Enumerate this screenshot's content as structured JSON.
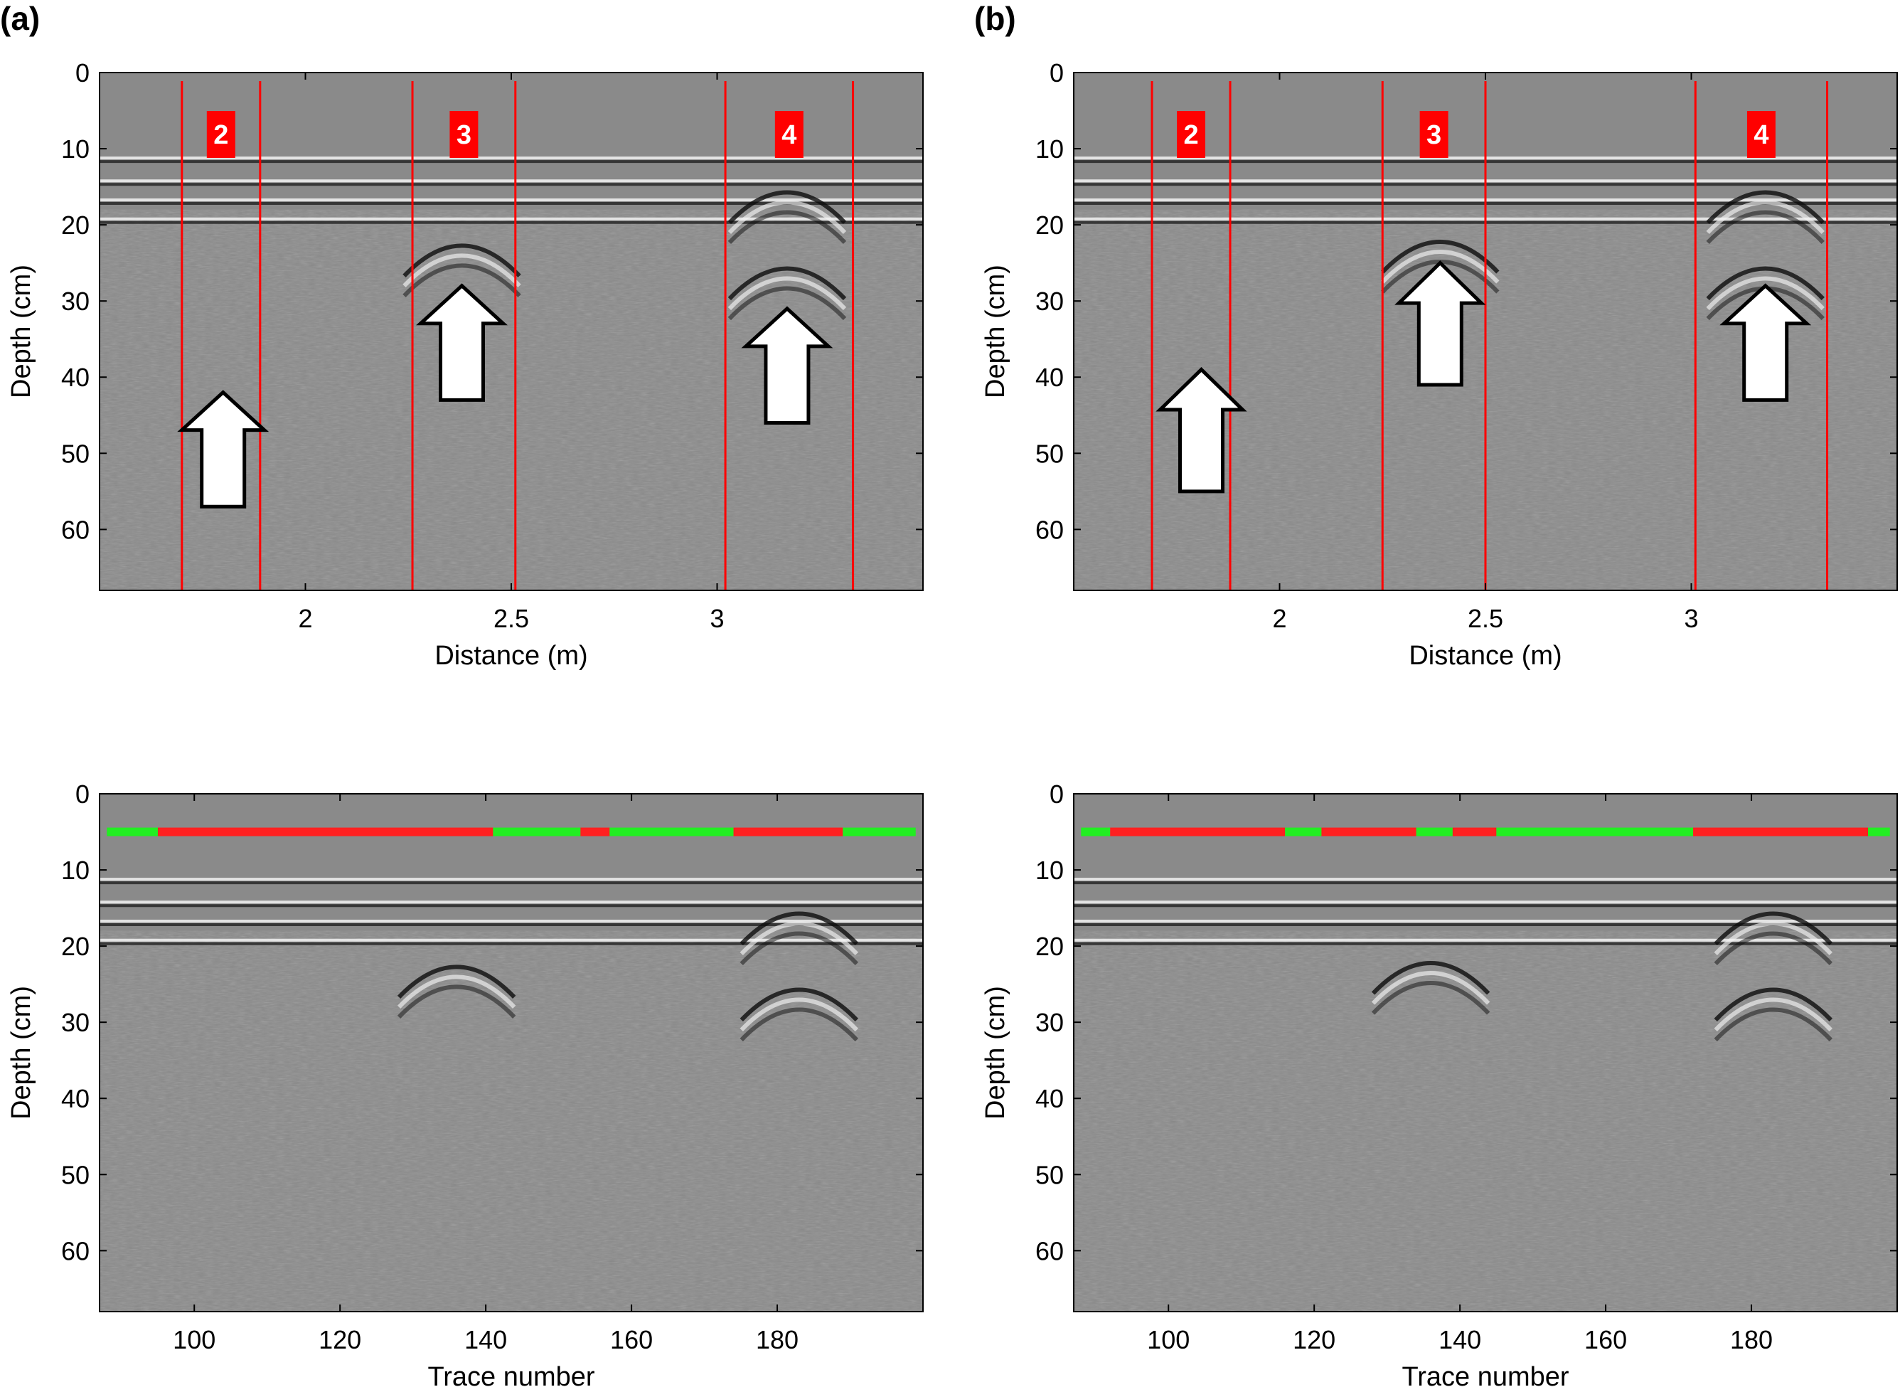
{
  "figure": {
    "panels": [
      {
        "id": "a",
        "label": "(a)"
      },
      {
        "id": "b",
        "label": "(b)"
      }
    ],
    "colors": {
      "background_gray": "#8a8a8a",
      "zone_line": "#ff0000",
      "zone_label_bg": "#ff0000",
      "zone_label_text": "#ffffff",
      "arrow_fill": "#ffffff",
      "arrow_stroke": "#000000",
      "marker_red": "#ff2020",
      "marker_green": "#22ee22"
    }
  },
  "chart_data": [
    {
      "type": "heatmap",
      "panel": "a",
      "position": "top",
      "title": "",
      "xlabel": "Distance (m)",
      "ylabel": "Depth (cm)",
      "xlim": [
        1.5,
        3.5
      ],
      "ylim": [
        0,
        68
      ],
      "xticks": [
        2,
        2.5,
        3
      ],
      "xtick_labels": [
        "2",
        "2.5",
        "3"
      ],
      "yticks": [
        0,
        10,
        20,
        30,
        40,
        50,
        60
      ],
      "ytick_labels": [
        "0",
        "10",
        "20",
        "30",
        "40",
        "50",
        "60"
      ],
      "zones": [
        {
          "label": "2",
          "x_start": 1.7,
          "x_end": 1.89,
          "arrow_tip_depth": 42,
          "arrow_base_depth": 57,
          "arrow_x": 1.8
        },
        {
          "label": "3",
          "x_start": 2.26,
          "x_end": 2.51,
          "arrow_tip_depth": 28,
          "arrow_base_depth": 43,
          "arrow_x": 2.38
        },
        {
          "label": "4",
          "x_start": 3.02,
          "x_end": 3.33,
          "arrow_tip_depth": 31,
          "arrow_base_depth": 46,
          "arrow_x": 3.17
        }
      ],
      "reflectors": [
        {
          "depth": 11.5,
          "type": "flat"
        },
        {
          "depth": 14.5,
          "type": "flat"
        },
        {
          "depth": 17.0,
          "type": "flat"
        },
        {
          "depth": 19.5,
          "type": "flat"
        },
        {
          "apex_x": 2.38,
          "apex_depth": 22.5,
          "type": "hyperbola"
        },
        {
          "apex_x": 3.17,
          "apex_depth": 15.5,
          "type": "hyperbola"
        },
        {
          "apex_x": 3.17,
          "apex_depth": 25.5,
          "type": "hyperbola"
        }
      ]
    },
    {
      "type": "heatmap",
      "panel": "b",
      "position": "top",
      "title": "",
      "xlabel": "Distance (m)",
      "ylabel": "Depth (cm)",
      "xlim": [
        1.5,
        3.5
      ],
      "ylim": [
        0,
        68
      ],
      "xticks": [
        2,
        2.5,
        3
      ],
      "xtick_labels": [
        "2",
        "2.5",
        "3"
      ],
      "yticks": [
        0,
        10,
        20,
        30,
        40,
        50,
        60
      ],
      "ytick_labels": [
        "0",
        "10",
        "20",
        "30",
        "40",
        "50",
        "60"
      ],
      "zones": [
        {
          "label": "2",
          "x_start": 1.69,
          "x_end": 1.88,
          "arrow_tip_depth": 39,
          "arrow_base_depth": 55,
          "arrow_x": 1.81
        },
        {
          "label": "3",
          "x_start": 2.25,
          "x_end": 2.5,
          "arrow_tip_depth": 25,
          "arrow_base_depth": 41,
          "arrow_x": 2.39
        },
        {
          "label": "4",
          "x_start": 3.01,
          "x_end": 3.33,
          "arrow_tip_depth": 28,
          "arrow_base_depth": 43,
          "arrow_x": 3.18
        }
      ],
      "reflectors": [
        {
          "depth": 11.5,
          "type": "flat"
        },
        {
          "depth": 14.5,
          "type": "flat"
        },
        {
          "depth": 17.0,
          "type": "flat"
        },
        {
          "depth": 19.5,
          "type": "flat"
        },
        {
          "apex_x": 2.39,
          "apex_depth": 22.0,
          "type": "hyperbola"
        },
        {
          "apex_x": 3.18,
          "apex_depth": 15.5,
          "type": "hyperbola"
        },
        {
          "apex_x": 3.18,
          "apex_depth": 25.5,
          "type": "hyperbola"
        }
      ]
    },
    {
      "type": "heatmap",
      "panel": "a",
      "position": "bottom",
      "title": "",
      "xlabel": "Trace number",
      "ylabel": "Depth (cm)",
      "xlim": [
        87,
        200
      ],
      "ylim": [
        0,
        68
      ],
      "xticks": [
        100,
        120,
        140,
        160,
        180
      ],
      "xtick_labels": [
        "100",
        "120",
        "140",
        "160",
        "180"
      ],
      "yticks": [
        0,
        10,
        20,
        30,
        40,
        50,
        60
      ],
      "ytick_labels": [
        "0",
        "10",
        "20",
        "30",
        "40",
        "50",
        "60"
      ],
      "marker_row_depth": 5,
      "marker_segments": [
        {
          "from": 88,
          "to": 95,
          "class": "green"
        },
        {
          "from": 95,
          "to": 141,
          "class": "red"
        },
        {
          "from": 141,
          "to": 153,
          "class": "green"
        },
        {
          "from": 153,
          "to": 157,
          "class": "red"
        },
        {
          "from": 157,
          "to": 174,
          "class": "green"
        },
        {
          "from": 174,
          "to": 189,
          "class": "red"
        },
        {
          "from": 189,
          "to": 199,
          "class": "green"
        }
      ],
      "reflectors": [
        {
          "depth": 11.5,
          "type": "flat"
        },
        {
          "depth": 14.5,
          "type": "flat"
        },
        {
          "depth": 17.0,
          "type": "flat"
        },
        {
          "depth": 19.5,
          "type": "flat"
        },
        {
          "apex_x": 136,
          "apex_depth": 22.5,
          "type": "hyperbola"
        },
        {
          "apex_x": 183,
          "apex_depth": 15.5,
          "type": "hyperbola"
        },
        {
          "apex_x": 183,
          "apex_depth": 25.5,
          "type": "hyperbola"
        }
      ]
    },
    {
      "type": "heatmap",
      "panel": "b",
      "position": "bottom",
      "title": "",
      "xlabel": "Trace number",
      "ylabel": "Depth (cm)",
      "xlim": [
        87,
        200
      ],
      "ylim": [
        0,
        68
      ],
      "xticks": [
        100,
        120,
        140,
        160,
        180
      ],
      "xtick_labels": [
        "100",
        "120",
        "140",
        "160",
        "180"
      ],
      "yticks": [
        0,
        10,
        20,
        30,
        40,
        50,
        60
      ],
      "ytick_labels": [
        "0",
        "10",
        "20",
        "30",
        "40",
        "50",
        "60"
      ],
      "marker_row_depth": 5,
      "marker_segments": [
        {
          "from": 88,
          "to": 92,
          "class": "green"
        },
        {
          "from": 92,
          "to": 116,
          "class": "red"
        },
        {
          "from": 116,
          "to": 121,
          "class": "green"
        },
        {
          "from": 121,
          "to": 134,
          "class": "red"
        },
        {
          "from": 134,
          "to": 139,
          "class": "green"
        },
        {
          "from": 139,
          "to": 145,
          "class": "red"
        },
        {
          "from": 145,
          "to": 172,
          "class": "green"
        },
        {
          "from": 172,
          "to": 196,
          "class": "red"
        },
        {
          "from": 196,
          "to": 199,
          "class": "green"
        }
      ],
      "reflectors": [
        {
          "depth": 11.5,
          "type": "flat"
        },
        {
          "depth": 14.5,
          "type": "flat"
        },
        {
          "depth": 17.0,
          "type": "flat"
        },
        {
          "depth": 19.5,
          "type": "flat"
        },
        {
          "apex_x": 136,
          "apex_depth": 22.0,
          "type": "hyperbola"
        },
        {
          "apex_x": 183,
          "apex_depth": 15.5,
          "type": "hyperbola"
        },
        {
          "apex_x": 183,
          "apex_depth": 25.5,
          "type": "hyperbola"
        }
      ]
    }
  ]
}
